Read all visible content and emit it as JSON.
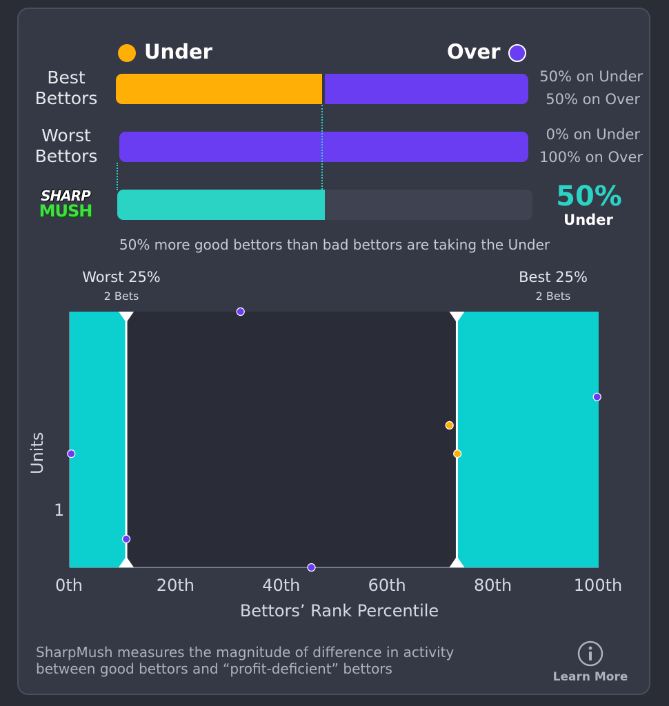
{
  "legend": {
    "under_label": "Under",
    "over_label": "Over"
  },
  "colors": {
    "under": "#ffaf06",
    "over": "#6a3cf2",
    "teal": "#2bd3c5",
    "chart_fill": "#0ccfcf",
    "plot_bg": "#2a2c37",
    "track": "#3f4250"
  },
  "rows": {
    "best": {
      "label_line1": "Best",
      "label_line2": "Bettors",
      "under_share": 0.5,
      "under_text": "50% on Under",
      "over_text": "50% on Over"
    },
    "worst": {
      "label_line1": "Worst",
      "label_line2": "Bettors",
      "under_share": 0.0,
      "under_text": "0% on Under",
      "over_text": "100% on Over"
    }
  },
  "logo": {
    "line1": "SHARP",
    "line2": "MUSH"
  },
  "sharpmush": {
    "value_share": 0.5,
    "value_text": "50%",
    "side_text": "Under"
  },
  "summary": "50% more good bettors than bad bettors are taking the Under",
  "chart_data": {
    "type": "scatter",
    "xlabel": "Bettors’ Rank Percentile",
    "ylabel": "Units",
    "x_ticks": [
      "0th",
      "20th",
      "40th",
      "60th",
      "80th",
      "100th"
    ],
    "x_tick_values": [
      0,
      20,
      40,
      60,
      80,
      100
    ],
    "y_ticks": [
      "1"
    ],
    "y_tick_values": [
      1
    ],
    "xlim": [
      0,
      100
    ],
    "ylim": [
      0,
      2.25
    ],
    "bands": [
      {
        "title": "Worst 25%",
        "subtitle": "2 Bets",
        "from": 0,
        "to": 10.7
      },
      {
        "title": "Best 25%",
        "subtitle": "2 Bets",
        "from": 73.2,
        "to": 100
      }
    ],
    "series": [
      {
        "name": "Under",
        "points": [
          [
            71.8,
            1.25
          ],
          [
            73.3,
            1.0
          ]
        ]
      },
      {
        "name": "Over",
        "points": [
          [
            0.3,
            1.0
          ],
          [
            10.7,
            0.25
          ],
          [
            32.3,
            2.25
          ],
          [
            45.7,
            0.0
          ],
          [
            99.7,
            1.5
          ]
        ]
      }
    ]
  },
  "footer": {
    "line1": "SharpMush measures the magnitude of difference in activity",
    "line2": "between good bettors and “profit-deficient” bettors",
    "learn_more": "Learn More",
    "info_icon": "info-icon"
  }
}
